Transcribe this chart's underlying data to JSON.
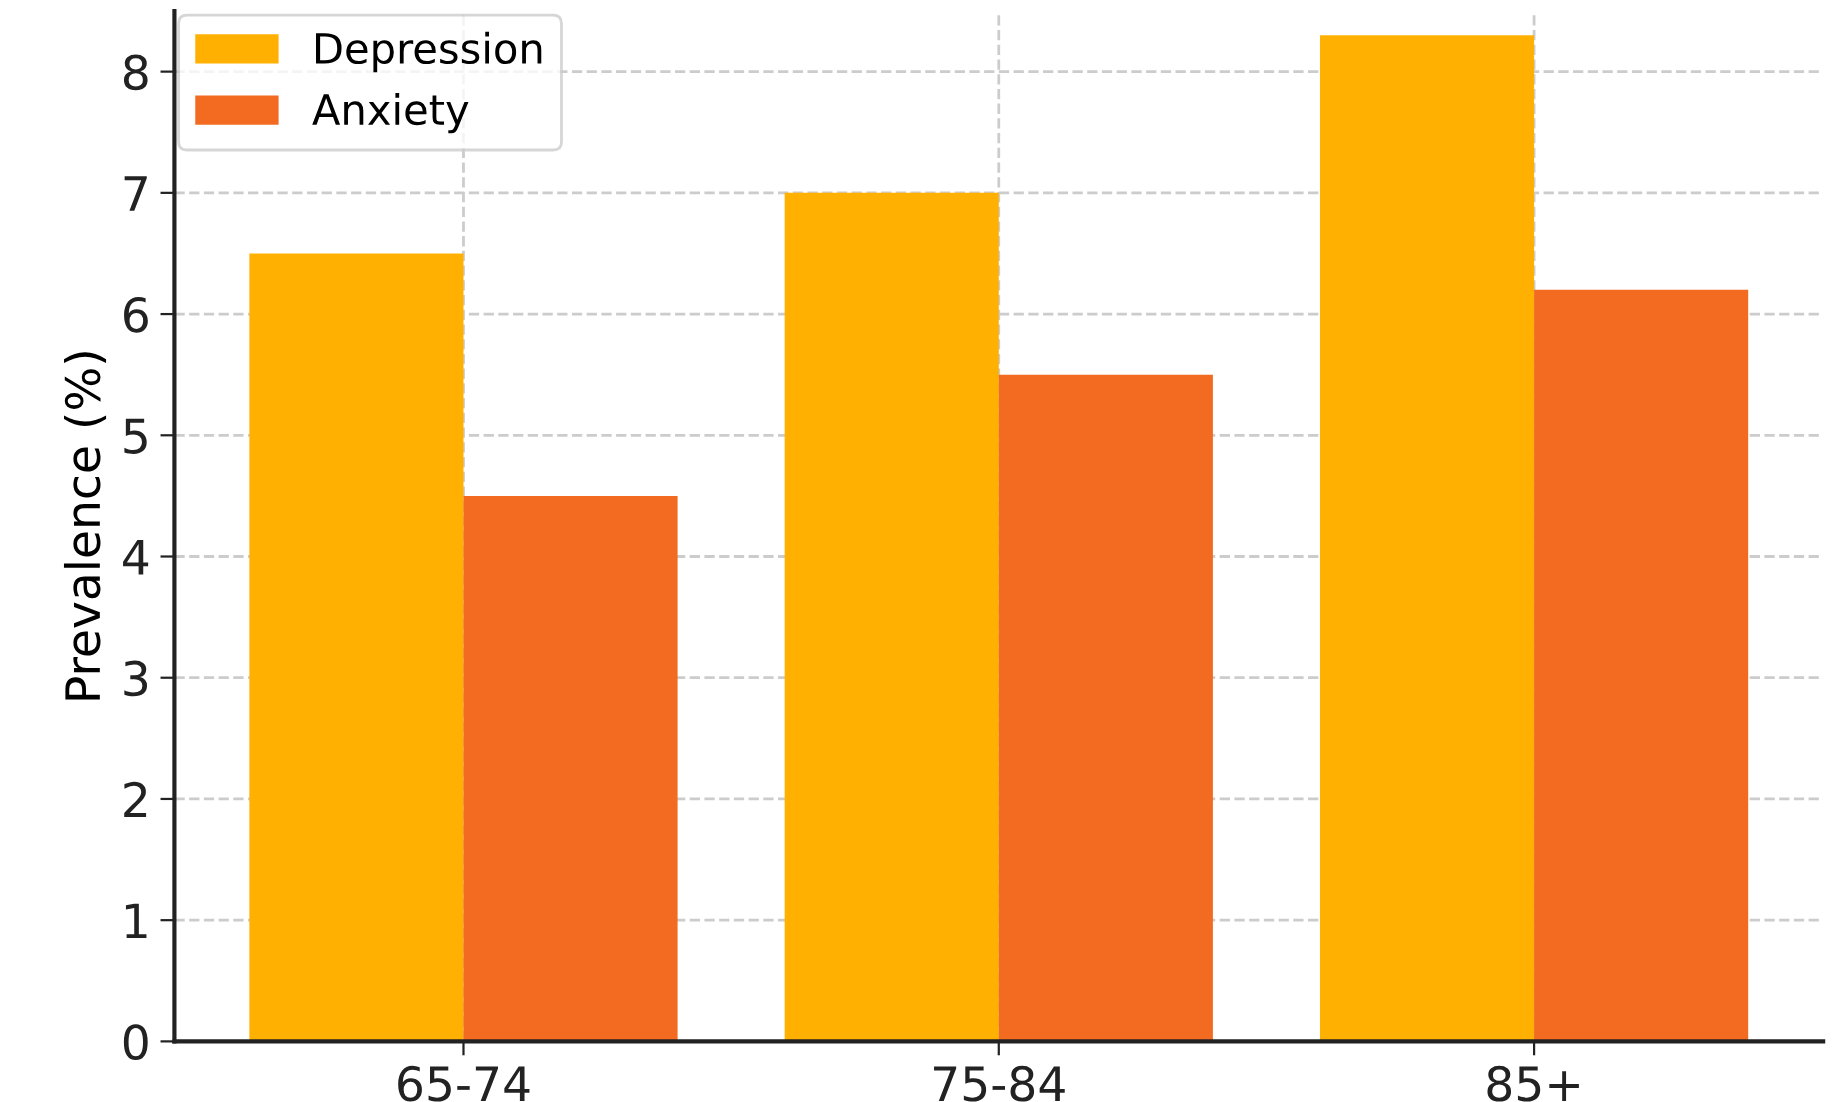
{
  "chart_data": {
    "type": "bar",
    "ylabel": "Prevalence (%)",
    "categories": [
      "65-74",
      "75-84",
      "85+"
    ],
    "series": [
      {
        "name": "Depression",
        "color": "#ffb000",
        "values": [
          6.5,
          7.0,
          8.3
        ]
      },
      {
        "name": "Anxiety",
        "color": "#f26b21",
        "values": [
          4.5,
          5.5,
          6.2
        ]
      }
    ],
    "ylim": [
      0,
      8.5
    ],
    "yticks": [
      0,
      1,
      2,
      3,
      4,
      5,
      6,
      7,
      8
    ],
    "grid": true,
    "legend": "top left"
  }
}
